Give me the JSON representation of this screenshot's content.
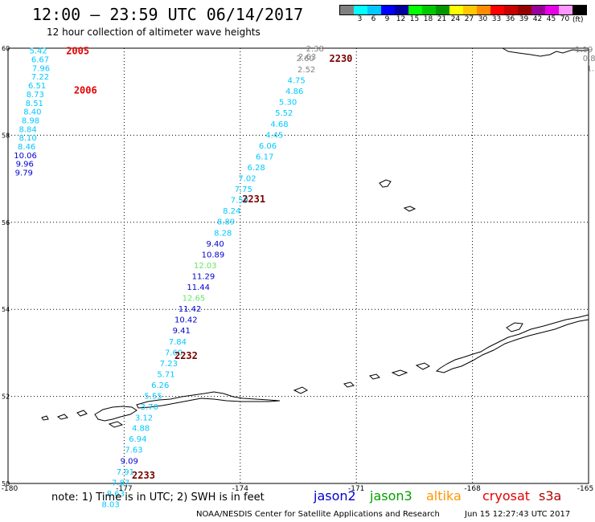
{
  "header": {
    "title": "12:00 – 23:59 UTC 06/14/2017",
    "subtitle": "12 hour collection of altimeter wave heights"
  },
  "legend": {
    "unit": "(ft)",
    "items": [
      {
        "label": "",
        "color": "#808080"
      },
      {
        "label": "3",
        "color": "#00ffff"
      },
      {
        "label": "6",
        "color": "#00c8ff"
      },
      {
        "label": "9",
        "color": "#0000ff"
      },
      {
        "label": "12",
        "color": "#0000a0"
      },
      {
        "label": "15",
        "color": "#00ff00"
      },
      {
        "label": "18",
        "color": "#00c800"
      },
      {
        "label": "21",
        "color": "#009600"
      },
      {
        "label": "24",
        "color": "#ffff00"
      },
      {
        "label": "27",
        "color": "#ffc800"
      },
      {
        "label": "30",
        "color": "#ff8c00"
      },
      {
        "label": "33",
        "color": "#ff0000"
      },
      {
        "label": "36",
        "color": "#c80000"
      },
      {
        "label": "39",
        "color": "#960000"
      },
      {
        "label": "42",
        "color": "#960096"
      },
      {
        "label": "45",
        "color": "#e600e6"
      },
      {
        "label": "70",
        "color": "#ff96ff"
      },
      {
        "label": "",
        "color": "#000000"
      }
    ]
  },
  "map": {
    "lat_labels": [
      {
        "label": "60",
        "y": 60
      },
      {
        "label": "58",
        "y": 58
      },
      {
        "label": "56",
        "y": 56
      },
      {
        "label": "54",
        "y": 54
      },
      {
        "label": "52",
        "y": 52
      },
      {
        "label": "50",
        "y": 50
      }
    ],
    "lon_labels": [
      {
        "label": "-180",
        "x": -180
      },
      {
        "label": "-177",
        "x": -177
      },
      {
        "label": "-174",
        "x": -174
      },
      {
        "label": "-171",
        "x": -171
      },
      {
        "label": "-168",
        "x": -168
      },
      {
        "label": "-165",
        "x": -165
      }
    ],
    "grid_lat": [
      58,
      56,
      54,
      52
    ],
    "grid_lon": [
      -177,
      -174,
      -171,
      -168
    ],
    "pass_labels": [
      {
        "label": "2005",
        "lon": -178.5,
        "lat": 59.95,
        "color": "#e60000"
      },
      {
        "label": "2006",
        "lon": -178.3,
        "lat": 59.05,
        "color": "#e60000"
      },
      {
        "label": "2230",
        "lon": -171.7,
        "lat": 59.78,
        "color": "#7a0000"
      },
      {
        "label": "2231",
        "lon": -173.95,
        "lat": 56.55,
        "color": "#7a0000"
      },
      {
        "label": "2232",
        "lon": -175.7,
        "lat": 52.95,
        "color": "#7a0000"
      },
      {
        "label": "2233",
        "lon": -176.8,
        "lat": 50.2,
        "color": "#7a0000"
      }
    ],
    "observations": [
      {
        "value": "5.42",
        "lon": -179.45,
        "lat": 59.95,
        "color": "#00c8ff"
      },
      {
        "value": "6.67",
        "lon": -179.4,
        "lat": 59.75,
        "color": "#00c8ff"
      },
      {
        "value": "7.96",
        "lon": -179.38,
        "lat": 59.55,
        "color": "#00c8ff"
      },
      {
        "value": "7.22",
        "lon": -179.4,
        "lat": 59.35,
        "color": "#00c8ff"
      },
      {
        "value": "6.51",
        "lon": -179.48,
        "lat": 59.15,
        "color": "#00c8ff"
      },
      {
        "value": "8.73",
        "lon": -179.53,
        "lat": 58.95,
        "color": "#00c8ff"
      },
      {
        "value": "8.51",
        "lon": -179.55,
        "lat": 58.75,
        "color": "#00c8ff"
      },
      {
        "value": "8.40",
        "lon": -179.6,
        "lat": 58.55,
        "color": "#00c8ff"
      },
      {
        "value": "8.98",
        "lon": -179.65,
        "lat": 58.35,
        "color": "#00c8ff"
      },
      {
        "value": "8.84",
        "lon": -179.72,
        "lat": 58.15,
        "color": "#00c8ff"
      },
      {
        "value": "8.10",
        "lon": -179.72,
        "lat": 57.95,
        "color": "#00c8ff"
      },
      {
        "value": "8.46",
        "lon": -179.75,
        "lat": 57.75,
        "color": "#00c8ff"
      },
      {
        "value": "10.06",
        "lon": -179.85,
        "lat": 57.55,
        "color": "#0000d2"
      },
      {
        "value": "9.96",
        "lon": -179.8,
        "lat": 57.35,
        "color": "#0000d2"
      },
      {
        "value": "9.79",
        "lon": -179.82,
        "lat": 57.15,
        "color": "#0000d2"
      },
      {
        "value": "2.38",
        "lon": -172.3,
        "lat": 60.0,
        "color": "#808080"
      },
      {
        "value": "2.63",
        "lon": -172.5,
        "lat": 59.82,
        "color": "#808080"
      },
      {
        "value": "2.60",
        "lon": -172.55,
        "lat": 59.78,
        "color": "#808080"
      },
      {
        "value": "2.52",
        "lon": -172.52,
        "lat": 59.52,
        "color": "#808080"
      },
      {
        "value": "4.75",
        "lon": -172.78,
        "lat": 59.27,
        "color": "#00c8ff"
      },
      {
        "value": "4.86",
        "lon": -172.83,
        "lat": 59.02,
        "color": "#00c8ff"
      },
      {
        "value": "5.30",
        "lon": -173.0,
        "lat": 58.77,
        "color": "#00c8ff"
      },
      {
        "value": "5.52",
        "lon": -173.1,
        "lat": 58.52,
        "color": "#00c8ff"
      },
      {
        "value": "4.68",
        "lon": -173.22,
        "lat": 58.27,
        "color": "#00c8ff"
      },
      {
        "value": "4.45",
        "lon": -173.35,
        "lat": 58.02,
        "color": "#00c8ff"
      },
      {
        "value": "6.06",
        "lon": -173.52,
        "lat": 57.77,
        "color": "#00c8ff"
      },
      {
        "value": "6.17",
        "lon": -173.6,
        "lat": 57.52,
        "color": "#00c8ff"
      },
      {
        "value": "6.28",
        "lon": -173.82,
        "lat": 57.27,
        "color": "#00c8ff"
      },
      {
        "value": "7.02",
        "lon": -174.05,
        "lat": 57.02,
        "color": "#00c8ff"
      },
      {
        "value": "7.75",
        "lon": -174.15,
        "lat": 56.77,
        "color": "#00c8ff"
      },
      {
        "value": "7.59",
        "lon": -174.25,
        "lat": 56.52,
        "color": "#00c8ff"
      },
      {
        "value": "8.24",
        "lon": -174.45,
        "lat": 56.27,
        "color": "#00c8ff"
      },
      {
        "value": "8.89",
        "lon": -174.6,
        "lat": 56.02,
        "color": "#00c8ff"
      },
      {
        "value": "8.28",
        "lon": -174.68,
        "lat": 55.77,
        "color": "#00c8ff"
      },
      {
        "value": "9.40",
        "lon": -174.88,
        "lat": 55.52,
        "color": "#0000d2"
      },
      {
        "value": "10.89",
        "lon": -175.0,
        "lat": 55.27,
        "color": "#0000d2"
      },
      {
        "value": "12.03",
        "lon": -175.2,
        "lat": 55.02,
        "color": "#66e666"
      },
      {
        "value": "11.29",
        "lon": -175.25,
        "lat": 54.77,
        "color": "#0000d2"
      },
      {
        "value": "11.44",
        "lon": -175.38,
        "lat": 54.52,
        "color": "#0000d2"
      },
      {
        "value": "12.65",
        "lon": -175.5,
        "lat": 54.27,
        "color": "#66e666"
      },
      {
        "value": "11.42",
        "lon": -175.6,
        "lat": 54.02,
        "color": "#0000d2"
      },
      {
        "value": "10.42",
        "lon": -175.7,
        "lat": 53.77,
        "color": "#0000d2"
      },
      {
        "value": "9.41",
        "lon": -175.75,
        "lat": 53.52,
        "color": "#0000d2"
      },
      {
        "value": "7.84",
        "lon": -175.85,
        "lat": 53.27,
        "color": "#00c8ff"
      },
      {
        "value": "7.60",
        "lon": -175.95,
        "lat": 53.02,
        "color": "#00c8ff"
      },
      {
        "value": "7.23",
        "lon": -176.08,
        "lat": 52.77,
        "color": "#00c8ff"
      },
      {
        "value": "5.71",
        "lon": -176.15,
        "lat": 52.52,
        "color": "#00c8ff"
      },
      {
        "value": "6.26",
        "lon": -176.3,
        "lat": 52.27,
        "color": "#00c8ff"
      },
      {
        "value": "5.55",
        "lon": -176.48,
        "lat": 52.02,
        "color": "#00c8ff"
      },
      {
        "value": "3.70",
        "lon": -176.58,
        "lat": 51.77,
        "color": "#00c8ff"
      },
      {
        "value": "3.12",
        "lon": -176.72,
        "lat": 51.52,
        "color": "#00c8ff"
      },
      {
        "value": "4.88",
        "lon": -176.8,
        "lat": 51.28,
        "color": "#00c8ff"
      },
      {
        "value": "6.94",
        "lon": -176.88,
        "lat": 51.03,
        "color": "#00c8ff"
      },
      {
        "value": "7.63",
        "lon": -176.98,
        "lat": 50.78,
        "color": "#00c8ff"
      },
      {
        "value": "9.09",
        "lon": -177.1,
        "lat": 50.53,
        "color": "#0000d2"
      },
      {
        "value": "7.91",
        "lon": -177.2,
        "lat": 50.28,
        "color": "#00c8ff"
      },
      {
        "value": "7.87",
        "lon": -177.32,
        "lat": 50.03,
        "color": "#00c8ff"
      },
      {
        "value": "8.63",
        "lon": -177.45,
        "lat": 49.78,
        "color": "#00c8ff"
      },
      {
        "value": "8.03",
        "lon": -177.58,
        "lat": 49.53,
        "color": "#00c8ff"
      },
      {
        "value": "1.19",
        "lon": -165.35,
        "lat": 59.98,
        "color": "#808080"
      },
      {
        "value": "0.8",
        "lon": -165.15,
        "lat": 59.78,
        "color": "#808080"
      },
      {
        "value": "1.",
        "lon": -165.05,
        "lat": 59.55,
        "color": "#808080"
      }
    ]
  },
  "footer": {
    "note": "note:  1) Time is in UTC; 2) SWH is in feet",
    "satellites": [
      {
        "label": "jason2",
        "color": "#0000d2"
      },
      {
        "label": "jason3",
        "color": "#00a000"
      },
      {
        "label": "altika",
        "color": "#ff9600"
      },
      {
        "label": "cryosat",
        "color": "#e60000"
      },
      {
        "label": "s3a",
        "color": "#b40000"
      }
    ],
    "credit": "NOAA/NESDIS Center for Satellite Applications and Research",
    "timestamp": "Jun 15 12:27:43 UTC 2017"
  }
}
